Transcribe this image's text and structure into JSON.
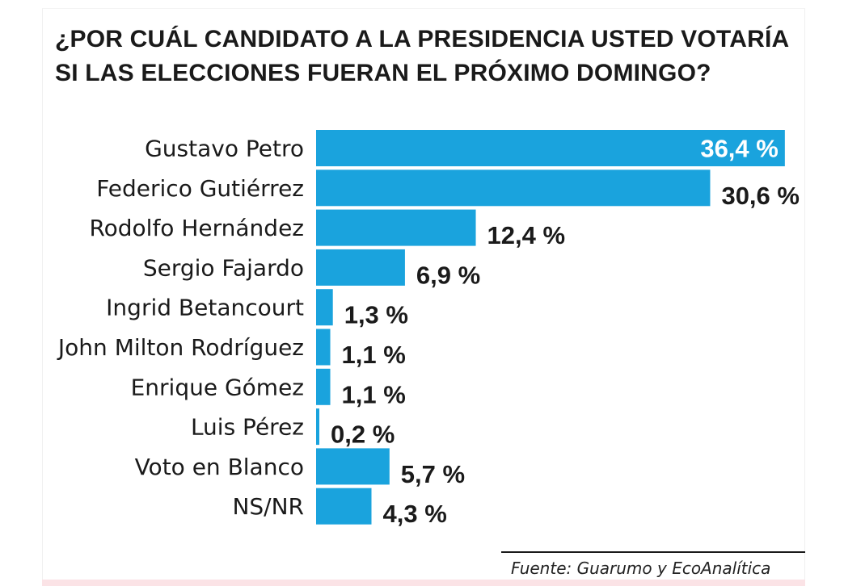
{
  "chart_data": {
    "type": "bar",
    "orientation": "horizontal",
    "title_lines": [
      "¿POR CUÁL CANDIDATO A LA PRESIDENCIA USTED VOTARÍA",
      "SI LAS ELECCIONES FUERAN EL PRÓXIMO DOMINGO?"
    ],
    "categories": [
      "Gustavo Petro",
      "Federico Gutiérrez",
      "Rodolfo Hernández",
      "Sergio Fajardo",
      "Ingrid Betancourt",
      "John Milton Rodríguez",
      "Enrique Gómez",
      "Luis Pérez",
      "Voto en Blanco",
      "NS/NR"
    ],
    "values": [
      36.4,
      30.6,
      12.4,
      6.9,
      1.3,
      1.1,
      1.1,
      0.2,
      5.7,
      4.3
    ],
    "value_labels": [
      "36,4 %",
      "30,6 %",
      "12,4 %",
      "6,9 %",
      "1,3 %",
      "1,1 %",
      "1,1 %",
      "0,2 %",
      "5,7 %",
      "4,3 %"
    ],
    "bar_color": "#1aa3dd",
    "label_color": "#1a1a1a",
    "inside_label_color": "#ffffff",
    "source": "Fuente: Guarumo y EcoAnalítica"
  }
}
